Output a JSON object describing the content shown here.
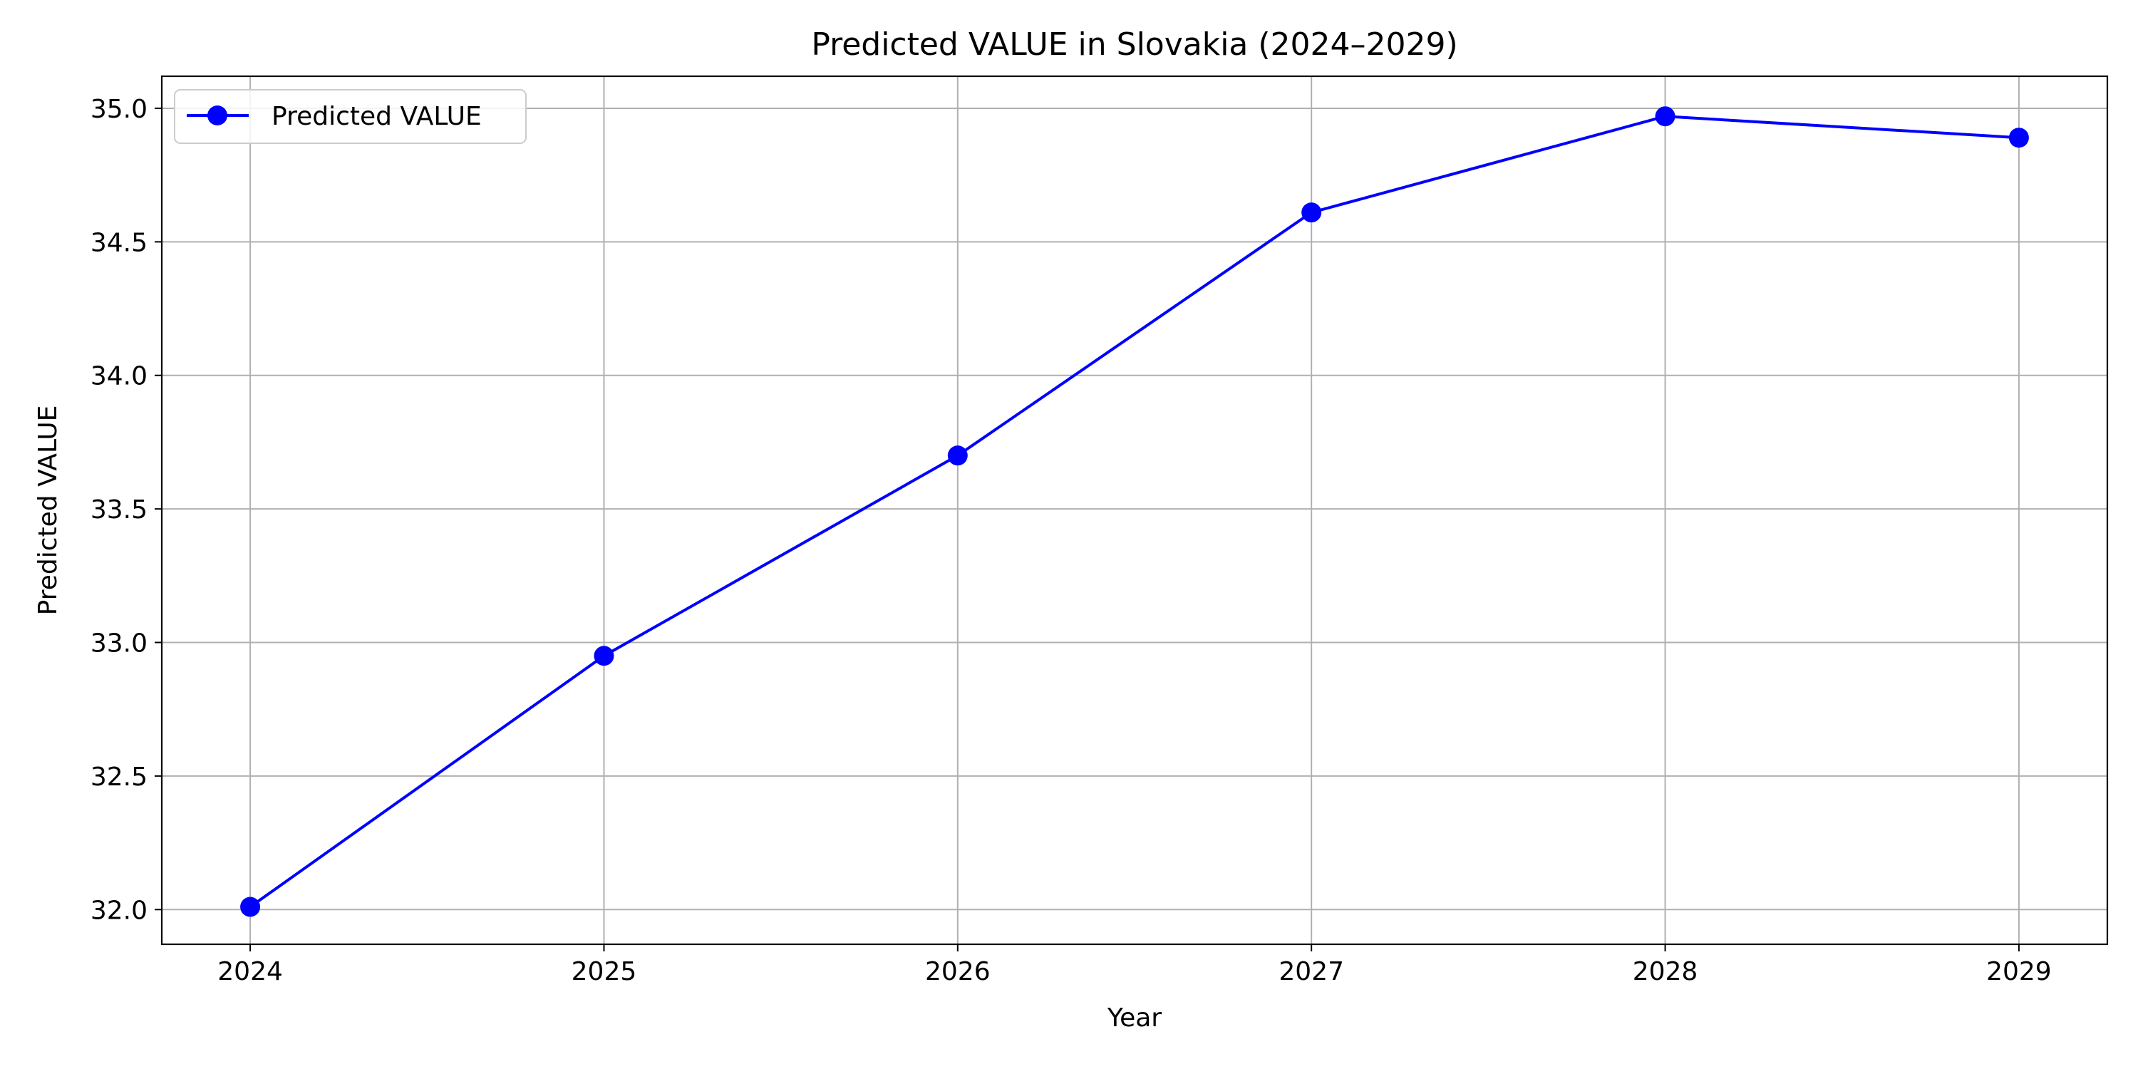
{
  "chart_data": {
    "type": "line",
    "title": "Predicted VALUE in Slovakia (2024–2029)",
    "xlabel": "Year",
    "ylabel": "Predicted VALUE",
    "x": [
      2024,
      2025,
      2026,
      2027,
      2028,
      2029
    ],
    "x_tick_labels": [
      "2024",
      "2025",
      "2026",
      "2027",
      "2028",
      "2029"
    ],
    "xlim": [
      2023.75,
      2029.25
    ],
    "y_ticks": [
      32.0,
      32.5,
      33.0,
      33.5,
      34.0,
      34.5,
      35.0
    ],
    "y_tick_labels": [
      "32.0",
      "32.5",
      "33.0",
      "33.5",
      "34.0",
      "34.5",
      "35.0"
    ],
    "ylim": [
      31.87,
      35.12
    ],
    "grid": true,
    "legend_position": "upper-left",
    "series": [
      {
        "name": "Predicted VALUE",
        "color": "#0000ff",
        "marker": "circle",
        "values": [
          32.01,
          32.95,
          33.7,
          34.61,
          34.97,
          34.89
        ]
      }
    ]
  }
}
